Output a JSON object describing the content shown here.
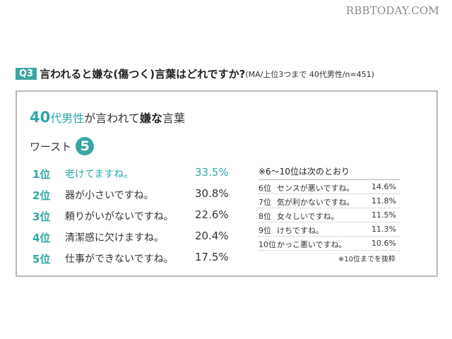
{
  "watermark": "RBBTODAY.COM",
  "question": {
    "badge": "Q3",
    "text": "言われると嫌な(傷つく)言葉はどれですか?",
    "sub": "(MA/上位3つまで 40代男性/n=451)"
  },
  "heading": {
    "part_big": "40",
    "part_teal": "代男性",
    "part_text": "が言われて",
    "part_bold": "嫌な",
    "part_end": "言葉"
  },
  "worst": {
    "label": "ワースト",
    "number": "5"
  },
  "chart_data": {
    "type": "table",
    "title": "40代男性が言われて嫌な言葉 ワースト5",
    "unit": "%",
    "rows": [
      {
        "rank": "1位",
        "phrase": "老けてますね。",
        "value": 33.5,
        "display": "33.5%"
      },
      {
        "rank": "2位",
        "phrase": "器が小さいですね。",
        "value": 30.8,
        "display": "30.8%"
      },
      {
        "rank": "3位",
        "phrase": "頼りがいがないですね。",
        "value": 22.6,
        "display": "22.6%"
      },
      {
        "rank": "4位",
        "phrase": "清潔感に欠けますね。",
        "value": 20.4,
        "display": "20.4%"
      },
      {
        "rank": "5位",
        "phrase": "仕事ができないですね。",
        "value": 17.5,
        "display": "17.5%"
      }
    ],
    "additional_title": "※6〜10位は次のとおり",
    "additional_rows": [
      {
        "rank": "6位",
        "phrase": "センスが悪いですね。",
        "value": 14.6,
        "display": "14.6%"
      },
      {
        "rank": "7位",
        "phrase": "気が利かないですね。",
        "value": 11.8,
        "display": "11.8%"
      },
      {
        "rank": "8位",
        "phrase": "女々しいですね。",
        "value": 11.5,
        "display": "11.5%"
      },
      {
        "rank": "9位",
        "phrase": "けちですね。",
        "value": 11.3,
        "display": "11.3%"
      },
      {
        "rank": "10位",
        "phrase": "かっこ悪いですね。",
        "value": 10.6,
        "display": "10.6%"
      }
    ],
    "note": "※10位までを抜粋"
  }
}
